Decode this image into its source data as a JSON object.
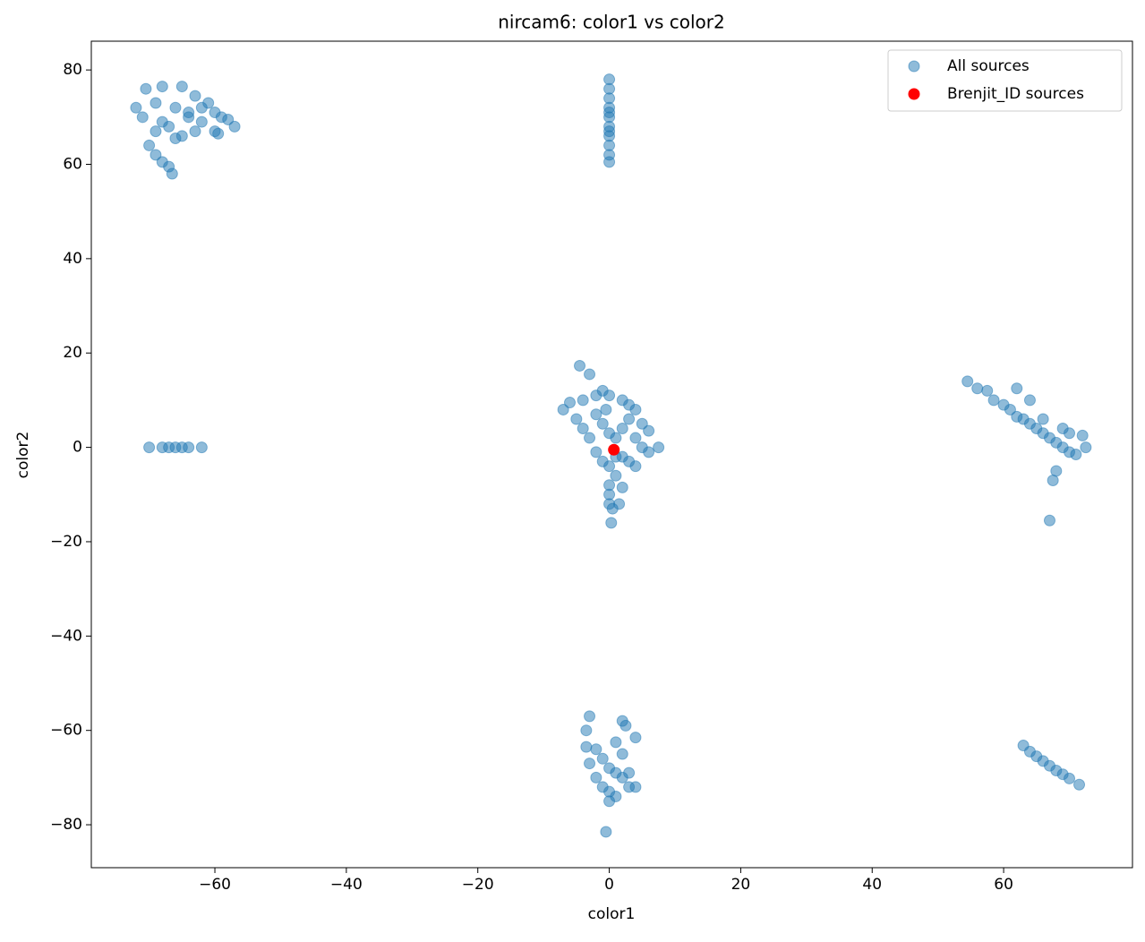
{
  "chart_data": {
    "type": "scatter",
    "title": "nircam6: color1 vs color2",
    "x_label": "color1",
    "y_label": "color2",
    "xlim": [
      -78.8,
      79.6
    ],
    "ylim": [
      -89.1,
      86.1
    ],
    "xticks": [
      {
        "value": -60,
        "label": "−60"
      },
      {
        "value": -40,
        "label": "−40"
      },
      {
        "value": -20,
        "label": "−20"
      },
      0,
      20,
      40,
      60
    ],
    "yticks": [
      {
        "value": -80,
        "label": "−80"
      },
      {
        "value": -60,
        "label": "−60"
      },
      {
        "value": -40,
        "label": "−40"
      },
      {
        "value": -20,
        "label": "−20"
      },
      0,
      20,
      40,
      60,
      80
    ],
    "legend": "upper right",
    "series": [
      {
        "name": "All sources",
        "color": "#1f77b4",
        "opacity": 0.5,
        "x": [
          -70.5,
          -68,
          -65,
          -69,
          -66,
          -63,
          -61,
          -59,
          -57,
          -60,
          -62,
          -64,
          -67,
          -69,
          -71,
          -72,
          -70,
          -69,
          -68,
          -67,
          -66.5,
          -65,
          -63,
          -66,
          -68,
          -64,
          -62,
          -60,
          -59.5,
          -58,
          0,
          0,
          0,
          0,
          0,
          0,
          0,
          0,
          0,
          0,
          0,
          0,
          -70,
          -68,
          -67,
          -66,
          -65,
          -64,
          -62,
          -4.5,
          -3,
          -7,
          -6,
          -5,
          -4,
          -2,
          -1,
          0,
          2,
          3,
          4,
          5,
          6,
          7.5,
          6,
          4,
          3,
          2,
          1,
          0,
          0,
          0,
          0.5,
          0.3,
          1.5,
          2,
          -1,
          -2,
          -3,
          -4,
          -1,
          0,
          1,
          2,
          3,
          -2,
          0,
          1,
          -0.5,
          4,
          5,
          54.5,
          56,
          57.5,
          58.5,
          60,
          61,
          62,
          62,
          63,
          64,
          65,
          66,
          67,
          68,
          69,
          70,
          71,
          72.5,
          72,
          68,
          67.5,
          67,
          64,
          66,
          69,
          70,
          -3,
          -3.5,
          2,
          2.5,
          4,
          1,
          -3.5,
          2,
          -2,
          -3,
          -1,
          0,
          1,
          2,
          3,
          4,
          -2,
          -1,
          0,
          1,
          0,
          -0.5,
          3,
          63,
          64,
          65,
          66,
          67,
          68,
          69,
          70,
          71.5
        ],
        "values": [
          76,
          76.5,
          76.5,
          73,
          72,
          74.5,
          73,
          70,
          68,
          67,
          69,
          70,
          68,
          67,
          70,
          72,
          64,
          62,
          60.5,
          59.5,
          58,
          66,
          67,
          65.5,
          69,
          71,
          72,
          71,
          66.5,
          69.5,
          78,
          76,
          74,
          72,
          70,
          68,
          66,
          64,
          62,
          60.5,
          71,
          67,
          0,
          0,
          0,
          0,
          0,
          0,
          0,
          17.3,
          15.5,
          8,
          9.5,
          6,
          10,
          11,
          12,
          11,
          10,
          9,
          8,
          5,
          3.5,
          0,
          -1,
          -4,
          -3,
          -2,
          -6,
          -8,
          -10,
          -12,
          -13,
          -16,
          -12,
          -8.5,
          -3,
          -1,
          2,
          4,
          5,
          3,
          2,
          4,
          6,
          7,
          -4,
          -2,
          8,
          2,
          0,
          14,
          12.5,
          12,
          10,
          9,
          8,
          12.5,
          6.5,
          6,
          5,
          4,
          3,
          2,
          1,
          0,
          -1,
          -1.5,
          0,
          2.5,
          -5,
          -7,
          -15.5,
          10,
          6,
          4,
          3,
          -57,
          -60,
          -58,
          -59,
          -61.5,
          -62.5,
          -63.5,
          -65,
          -64,
          -67,
          -66,
          -68,
          -69,
          -70,
          -69,
          -72,
          -70,
          -72,
          -73,
          -74,
          -75,
          -81.5,
          -72,
          -63.2,
          -64.5,
          -65.5,
          -66.5,
          -67.5,
          -68.5,
          -69.3,
          -70.2,
          -71.5
        ]
      },
      {
        "name": "Brenjit_ID sources",
        "color": "#ff0000",
        "opacity": 1,
        "x": [
          0.7
        ],
        "values": [
          -0.5
        ]
      }
    ]
  }
}
